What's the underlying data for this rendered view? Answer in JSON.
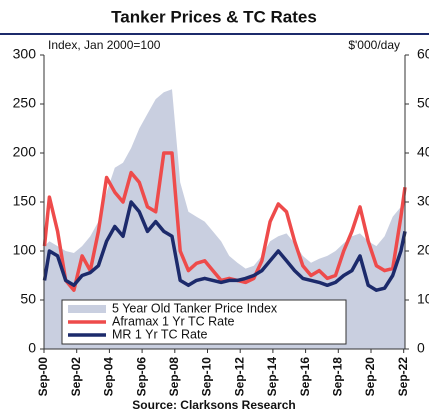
{
  "chart_data": {
    "type": "line",
    "title": "Tanker Prices & TC Rates",
    "ylabel": "Index, Jan 2000=100",
    "y2label": "$'000/day",
    "source": "Source: Clarksons Research",
    "x": [
      2000.7,
      2001,
      2001.5,
      2002,
      2002.5,
      2003,
      2003.5,
      2004,
      2004.5,
      2005,
      2005.5,
      2006,
      2006.5,
      2007,
      2007.5,
      2008,
      2008.5,
      2009,
      2009.5,
      2010,
      2010.5,
      2011,
      2011.5,
      2012,
      2012.5,
      2013,
      2013.5,
      2014,
      2014.5,
      2015,
      2015.5,
      2016,
      2016.5,
      2017,
      2017.5,
      2018,
      2018.5,
      2019,
      2019.5,
      2020,
      2020.5,
      2021,
      2021.5,
      2022,
      2022.5,
      2022.75
    ],
    "xlim": [
      2000.67,
      2022.75
    ],
    "xticks": [
      {
        "value": 2000.67,
        "label": "Sep-00"
      },
      {
        "value": 2002.67,
        "label": "Sep-02"
      },
      {
        "value": 2004.67,
        "label": "Sep-04"
      },
      {
        "value": 2006.67,
        "label": "Sep-06"
      },
      {
        "value": 2008.67,
        "label": "Sep-08"
      },
      {
        "value": 2010.67,
        "label": "Sep-10"
      },
      {
        "value": 2012.67,
        "label": "Sep-12"
      },
      {
        "value": 2014.67,
        "label": "Sep-14"
      },
      {
        "value": 2016.67,
        "label": "Sep-16"
      },
      {
        "value": 2018.67,
        "label": "Sep-18"
      },
      {
        "value": 2020.67,
        "label": "Sep-20"
      },
      {
        "value": 2022.67,
        "label": "Sep-22"
      }
    ],
    "ylim": [
      0,
      300
    ],
    "yticks": [
      0,
      50,
      100,
      150,
      200,
      250,
      300
    ],
    "y2lim": [
      0,
      60
    ],
    "y2ticks": [
      0,
      10,
      20,
      30,
      40,
      50,
      60
    ],
    "series": [
      {
        "name": "5 Year Old Tanker Price Index",
        "kind": "area",
        "color": "#c9cfe0",
        "values": [
          105,
          110,
          105,
          100,
          98,
          105,
          115,
          130,
          160,
          185,
          190,
          205,
          225,
          240,
          255,
          262,
          265,
          170,
          140,
          135,
          130,
          120,
          110,
          95,
          88,
          82,
          85,
          95,
          110,
          115,
          118,
          108,
          95,
          88,
          92,
          95,
          100,
          108,
          115,
          118,
          110,
          105,
          115,
          135,
          145,
          160
        ]
      },
      {
        "name": "Aframax 1 Yr TC Rate",
        "kind": "line",
        "axis": "y2",
        "color": "#ee4b4b",
        "values": [
          21,
          31,
          24,
          14,
          12,
          19,
          16,
          24,
          35,
          32,
          30,
          36,
          34,
          29,
          28,
          40,
          40,
          20,
          16,
          17.5,
          18,
          16,
          14,
          14.4,
          14,
          13.6,
          14.4,
          18,
          26,
          29.6,
          28,
          22,
          17,
          15,
          16,
          14.4,
          15,
          20,
          24,
          29,
          22,
          17,
          16,
          16.4,
          27,
          33
        ]
      },
      {
        "name": "MR 1 Yr TC Rate",
        "kind": "line",
        "axis": "y2",
        "color": "#1c2a6b",
        "values": [
          14,
          20,
          19,
          14,
          13,
          15,
          15.6,
          17,
          22,
          25,
          23,
          30,
          28,
          24,
          26,
          24,
          23,
          14,
          13,
          14,
          14.4,
          14,
          13.6,
          14,
          14,
          14.4,
          15,
          16,
          18,
          20,
          18,
          16,
          14.4,
          14,
          13.6,
          13,
          13.6,
          15,
          16,
          19,
          13,
          12,
          12.4,
          15,
          20,
          24
        ]
      }
    ]
  }
}
